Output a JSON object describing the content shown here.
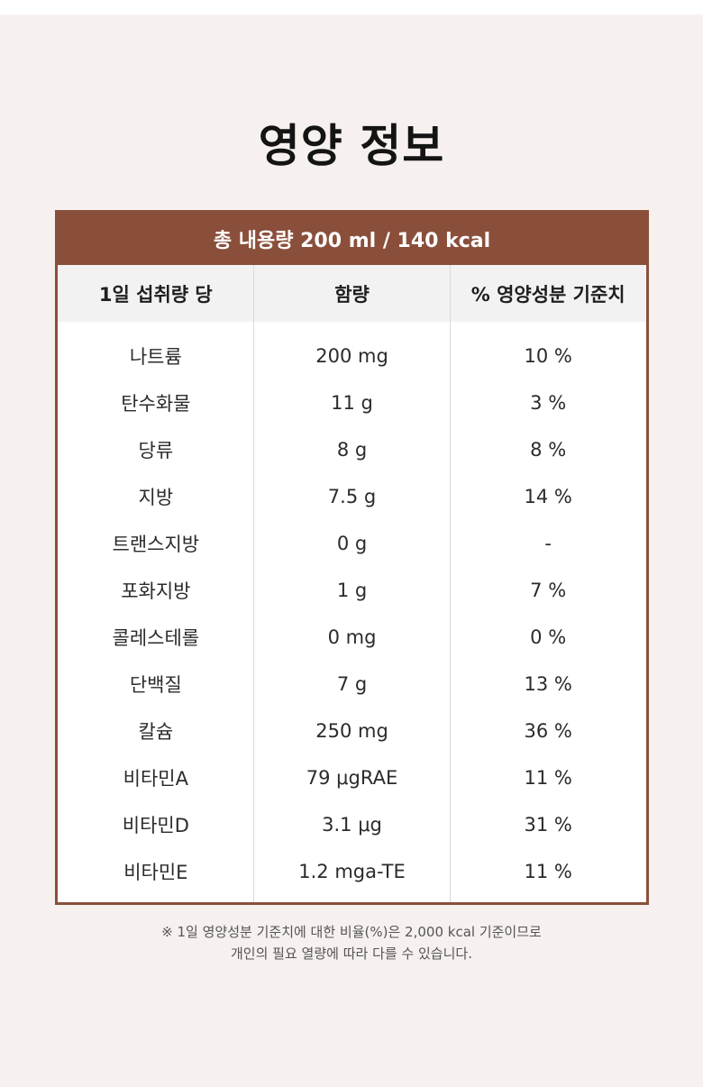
{
  "title": "영양 정보",
  "table": {
    "header": "총 내용량 200 ml / 140 kcal",
    "columns": [
      "1일 섭취량 당",
      "함량",
      "% 영양성분 기준치"
    ],
    "rows": [
      {
        "name": "나트륨",
        "amount": "200 mg",
        "percent": "10 %"
      },
      {
        "name": "탄수화물",
        "amount": "11 g",
        "percent": "3 %"
      },
      {
        "name": "당류",
        "amount": "8 g",
        "percent": "8 %"
      },
      {
        "name": "지방",
        "amount": "7.5 g",
        "percent": "14 %"
      },
      {
        "name": "트랜스지방",
        "amount": "0 g",
        "percent": "-"
      },
      {
        "name": "포화지방",
        "amount": "1 g",
        "percent": "7 %"
      },
      {
        "name": "콜레스테롤",
        "amount": "0 mg",
        "percent": "0 %"
      },
      {
        "name": "단백질",
        "amount": "7 g",
        "percent": "13 %"
      },
      {
        "name": "칼슘",
        "amount": "250 mg",
        "percent": "36 %"
      },
      {
        "name": "비타민A",
        "amount": "79 μgRAE",
        "percent": "11 %"
      },
      {
        "name": "비타민D",
        "amount": "3.1 μg",
        "percent": "31 %"
      },
      {
        "name": "비타민E",
        "amount": "1.2 mga-TE",
        "percent": "11 %"
      }
    ]
  },
  "footnote": {
    "line1": "※ 1일 영양성분 기준치에 대한 비율(%)은 2,000 kcal 기준이므로",
    "line2": "개인의 필요 열량에 따라 다를 수 있습니다."
  },
  "colors": {
    "accent": "#8a4f3b",
    "background": "#f6f1ef",
    "column_header_bg": "#f2f2f2"
  }
}
